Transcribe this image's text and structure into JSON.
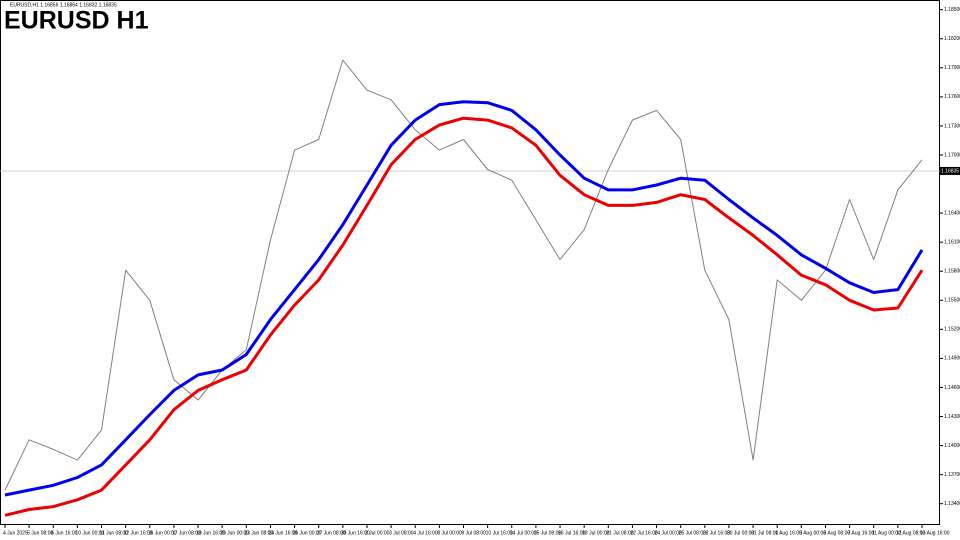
{
  "chart_data": {
    "type": "line",
    "title": "EURUSD H1",
    "subtitle": "EURUSD,H1 1.16856 1.16864 1.16832 1.16835",
    "categories": [
      "4 Jun 2025",
      "5 Jun 08:00",
      "6 Jun 16:00",
      "10 Jun 00:00",
      "11 Jun 08:00",
      "12 Jun 16:00",
      "16 Jun 00:00",
      "17 Jun 08:00",
      "18 Jun 16:00",
      "20 Jun 00:00",
      "23 Jun 08:00",
      "24 Jun 16:00",
      "26 Jun 00:00",
      "27 Jun 08:00",
      "30 Jun 16:00",
      "2 Jul 00:00",
      "3 Jul 08:00",
      "4 Jul 16:00",
      "8 Jul 00:00",
      "9 Jul 08:00",
      "10 Jul 16:00",
      "14 Jul 00:00",
      "15 Jul 08:00",
      "16 Jul 16:00",
      "18 Jul 00:00",
      "21 Jul 08:00",
      "22 Jul 16:00",
      "24 Jul 00:00",
      "25 Jul 08:00",
      "28 Jul 16:00",
      "30 Jul 00:00",
      "31 Jul 08:00",
      "1 Aug 16:00",
      "5 Aug 00:00",
      "6 Aug 08:00",
      "7 Aug 16:00",
      "11 Aug 00:00",
      "12 Aug 08:00",
      "13 Aug 16:00"
    ],
    "series": [
      {
        "color": "#808080",
        "width": 1,
        "values": [
          1.1354,
          1.1406,
          1.1396,
          1.1385,
          1.1416,
          1.1581,
          1.155,
          1.1468,
          1.1447,
          1.1478,
          1.1499,
          1.1612,
          1.1705,
          1.1716,
          1.1798,
          1.1767,
          1.1757,
          1.1726,
          1.1705,
          1.1716,
          1.1685,
          1.1674,
          1.1633,
          1.1592,
          1.1623,
          1.1685,
          1.1736,
          1.1746,
          1.1716,
          1.1581,
          1.153,
          1.1385,
          1.1571,
          1.155,
          1.1581,
          1.1654,
          1.1592,
          1.1664,
          1.1695
        ]
      },
      {
        "color": "#0000ee",
        "width": 3,
        "values": [
          1.1349,
          1.1354,
          1.1359,
          1.1367,
          1.138,
          1.1406,
          1.1432,
          1.1457,
          1.1473,
          1.1478,
          1.1494,
          1.153,
          1.1561,
          1.1592,
          1.1628,
          1.1669,
          1.171,
          1.1736,
          1.1752,
          1.1755,
          1.1754,
          1.1746,
          1.1726,
          1.17,
          1.1676,
          1.1664,
          1.1664,
          1.1669,
          1.1676,
          1.1674,
          1.1654,
          1.1635,
          1.1617,
          1.1597,
          1.1583,
          1.1568,
          1.1558,
          1.1561,
          1.1602
        ]
      },
      {
        "color": "#ee0000",
        "width": 3,
        "values": [
          1.1328,
          1.1334,
          1.1337,
          1.1344,
          1.1354,
          1.138,
          1.1406,
          1.1437,
          1.1457,
          1.1468,
          1.1478,
          1.1514,
          1.1545,
          1.1571,
          1.1607,
          1.1648,
          1.169,
          1.1716,
          1.1731,
          1.1738,
          1.1736,
          1.1728,
          1.171,
          1.1679,
          1.1659,
          1.1648,
          1.1648,
          1.1651,
          1.1659,
          1.1654,
          1.1635,
          1.1617,
          1.1597,
          1.1576,
          1.1566,
          1.155,
          1.154,
          1.1542,
          1.1581
        ]
      }
    ],
    "ylim": [
      1.1318,
      1.186
    ],
    "yticks": [
      {
        "value": 1.185,
        "label": "1.18500"
      },
      {
        "value": 1.182,
        "label": "1.18200"
      },
      {
        "value": 1.179,
        "label": "1.17900"
      },
      {
        "value": 1.176,
        "label": "1.17600"
      },
      {
        "value": 1.173,
        "label": "1.17300"
      },
      {
        "value": 1.17,
        "label": "1.17000"
      },
      {
        "value": 1.164,
        "label": "1.16400"
      },
      {
        "value": 1.161,
        "label": "1.16100"
      },
      {
        "value": 1.158,
        "label": "1.15800"
      },
      {
        "value": 1.155,
        "label": "1.15500"
      },
      {
        "value": 1.152,
        "label": "1.15200"
      },
      {
        "value": 1.149,
        "label": "1.14900"
      },
      {
        "value": 1.146,
        "label": "1.14600"
      },
      {
        "value": 1.143,
        "label": "1.14300"
      },
      {
        "value": 1.14,
        "label": "1.14000"
      },
      {
        "value": 1.137,
        "label": "1.13700"
      },
      {
        "value": 1.134,
        "label": "1.13400"
      }
    ],
    "price_line": {
      "value": 1.16835,
      "label": "1.16835"
    },
    "grid": false
  }
}
